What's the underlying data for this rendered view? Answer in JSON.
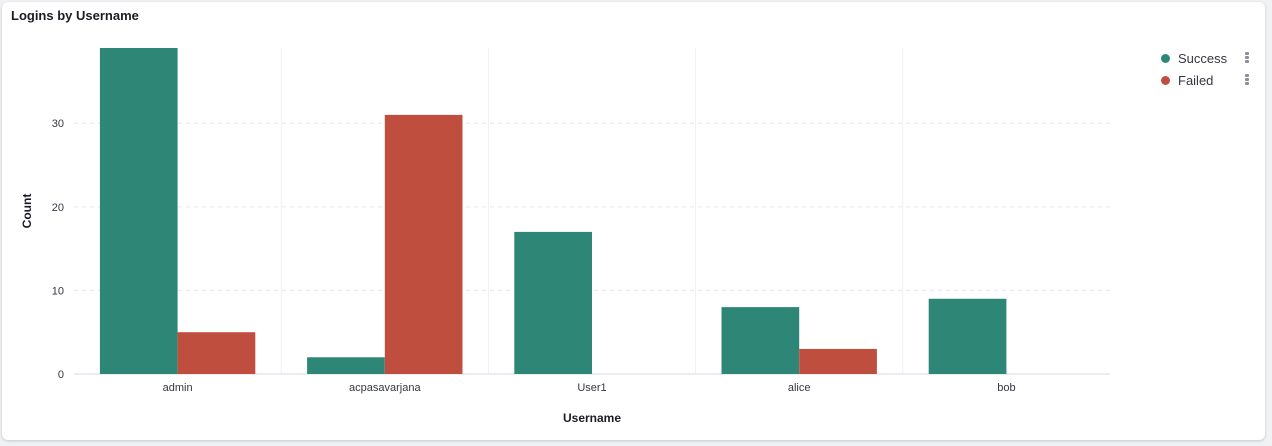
{
  "panel": {
    "title": "Logins by Username"
  },
  "colors": {
    "success": "#2e8776",
    "failed": "#c04e3f",
    "grid": "#e4e6eb"
  },
  "legend": {
    "items": [
      {
        "label": "Success",
        "color": "#2e8776",
        "icon": "vertical-dots-icon"
      },
      {
        "label": "Failed",
        "color": "#c04e3f",
        "icon": "vertical-dots-icon"
      }
    ]
  },
  "chart_data": {
    "type": "bar",
    "title": "Logins by Username",
    "xlabel": "Username",
    "ylabel": "Count",
    "categories": [
      "admin",
      "acpasavarjana",
      "User1",
      "alice",
      "bob"
    ],
    "series": [
      {
        "name": "Success",
        "values": [
          39,
          2,
          17,
          8,
          9
        ]
      },
      {
        "name": "Failed",
        "values": [
          5,
          31,
          0,
          3,
          0
        ]
      }
    ],
    "yticks": [
      0,
      10,
      20,
      30
    ],
    "ylim": [
      0,
      39
    ],
    "grid": true,
    "legend_position": "right"
  }
}
